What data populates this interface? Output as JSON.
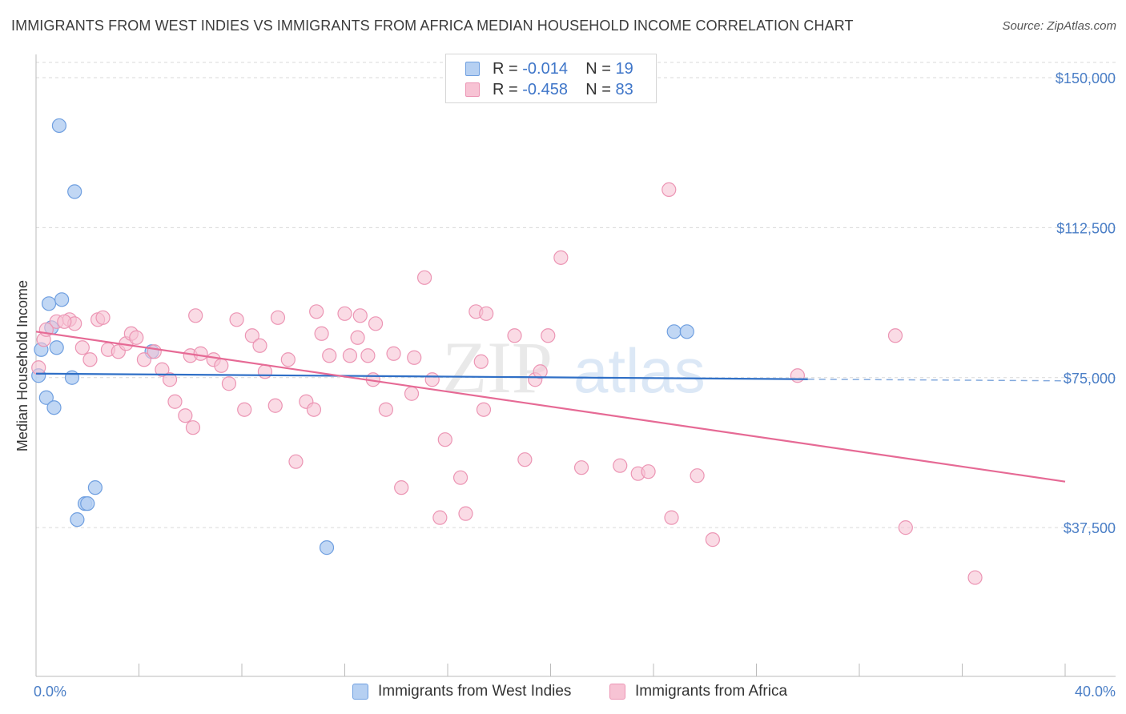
{
  "title": "IMMIGRANTS FROM WEST INDIES VS IMMIGRANTS FROM AFRICA MEDIAN HOUSEHOLD INCOME CORRELATION CHART",
  "source": "Source: ZipAtlas.com",
  "watermark": {
    "zip": "ZIP",
    "atlas": "atlas"
  },
  "legend_top": {
    "rows": [
      {
        "r_label": "R =",
        "r_value": "-0.014",
        "n_label": "N =",
        "n_value": "19"
      },
      {
        "r_label": "R =",
        "r_value": "-0.458",
        "n_label": "N =",
        "n_value": "83"
      }
    ]
  },
  "colors": {
    "west_indies_fill": "#b6d0f2",
    "west_indies_stroke": "#6f9fe0",
    "west_indies_line": "#2f6fc6",
    "africa_fill": "#f7c3d4",
    "africa_stroke": "#ec95b4",
    "africa_line": "#e66a95",
    "axis_text": "#4a7ec6",
    "grid": "#d9d9d9"
  },
  "chart_data": {
    "type": "scatter",
    "title": "IMMIGRANTS FROM WEST INDIES VS IMMIGRANTS FROM AFRICA MEDIAN HOUSEHOLD INCOME CORRELATION CHART",
    "xlabel": "",
    "ylabel": "Median Household Income",
    "xlim": [
      0,
      40
    ],
    "ylim": [
      0,
      153000
    ],
    "x_tick_labels": [
      "0.0%",
      "40.0%"
    ],
    "y_ticks": [
      37500,
      75000,
      112500,
      150000
    ],
    "y_tick_labels": [
      "$37,500",
      "$75,000",
      "$112,500",
      "$150,000"
    ],
    "grid": "horizontal dashed",
    "legend_placement": "bottom-center",
    "series": [
      {
        "name": "Immigrants from West Indies",
        "R": -0.014,
        "N": 19,
        "trend": {
          "x0": 0,
          "y0": 76000,
          "x1": 30,
          "y1": 74600,
          "dashed_to_x": 40,
          "dashed_y1": 74200
        },
        "points": [
          [
            0.1,
            75500
          ],
          [
            0.2,
            82000
          ],
          [
            0.4,
            70000
          ],
          [
            0.5,
            93500
          ],
          [
            0.6,
            87500
          ],
          [
            0.7,
            67500
          ],
          [
            0.8,
            82500
          ],
          [
            0.9,
            138000
          ],
          [
            1.0,
            94500
          ],
          [
            1.4,
            75000
          ],
          [
            1.5,
            121500
          ],
          [
            1.6,
            39500
          ],
          [
            1.9,
            43500
          ],
          [
            2.0,
            43500
          ],
          [
            2.3,
            47500
          ],
          [
            4.5,
            81500
          ],
          [
            11.3,
            32500
          ],
          [
            24.8,
            86500
          ],
          [
            25.3,
            86500
          ]
        ]
      },
      {
        "name": "Immigrants from Africa",
        "R": -0.458,
        "N": 83,
        "trend": {
          "x0": 0,
          "y0": 86500,
          "x1": 40,
          "y1": 49000
        },
        "points": [
          [
            0.1,
            77500
          ],
          [
            0.3,
            84500
          ],
          [
            0.8,
            89000
          ],
          [
            1.3,
            89500
          ],
          [
            1.5,
            88500
          ],
          [
            1.8,
            82500
          ],
          [
            2.1,
            79500
          ],
          [
            2.4,
            89500
          ],
          [
            2.6,
            90000
          ],
          [
            2.8,
            82000
          ],
          [
            3.2,
            81500
          ],
          [
            3.5,
            83500
          ],
          [
            3.7,
            86000
          ],
          [
            3.9,
            85000
          ],
          [
            4.2,
            79500
          ],
          [
            4.6,
            81500
          ],
          [
            4.9,
            77000
          ],
          [
            5.2,
            74500
          ],
          [
            5.4,
            69000
          ],
          [
            5.8,
            65500
          ],
          [
            6.0,
            80500
          ],
          [
            6.1,
            62500
          ],
          [
            6.2,
            90500
          ],
          [
            6.4,
            81000
          ],
          [
            6.9,
            79500
          ],
          [
            7.2,
            78000
          ],
          [
            7.5,
            73500
          ],
          [
            7.8,
            89500
          ],
          [
            8.1,
            67000
          ],
          [
            8.4,
            85500
          ],
          [
            8.7,
            83000
          ],
          [
            8.9,
            76500
          ],
          [
            9.3,
            68000
          ],
          [
            9.4,
            90000
          ],
          [
            9.8,
            79500
          ],
          [
            10.1,
            54000
          ],
          [
            10.5,
            69000
          ],
          [
            10.8,
            67000
          ],
          [
            10.9,
            91500
          ],
          [
            11.1,
            86000
          ],
          [
            11.4,
            80500
          ],
          [
            12.0,
            91000
          ],
          [
            12.2,
            80500
          ],
          [
            12.5,
            85000
          ],
          [
            12.6,
            90500
          ],
          [
            12.9,
            80500
          ],
          [
            13.1,
            74500
          ],
          [
            13.2,
            88500
          ],
          [
            13.6,
            67000
          ],
          [
            13.9,
            81000
          ],
          [
            14.2,
            47500
          ],
          [
            14.6,
            71000
          ],
          [
            14.7,
            80000
          ],
          [
            15.1,
            100000
          ],
          [
            15.4,
            74500
          ],
          [
            15.7,
            40000
          ],
          [
            15.9,
            59500
          ],
          [
            16.5,
            50000
          ],
          [
            16.7,
            41000
          ],
          [
            17.1,
            91500
          ],
          [
            17.3,
            79000
          ],
          [
            17.4,
            67000
          ],
          [
            17.5,
            91000
          ],
          [
            18.6,
            85500
          ],
          [
            19.0,
            54500
          ],
          [
            19.4,
            74500
          ],
          [
            19.6,
            76500
          ],
          [
            19.9,
            85500
          ],
          [
            20.4,
            105000
          ],
          [
            21.2,
            52500
          ],
          [
            22.7,
            53000
          ],
          [
            23.4,
            51000
          ],
          [
            23.8,
            51500
          ],
          [
            24.6,
            122000
          ],
          [
            24.7,
            40000
          ],
          [
            25.7,
            50500
          ],
          [
            26.3,
            34500
          ],
          [
            29.6,
            75500
          ],
          [
            33.4,
            85500
          ],
          [
            33.8,
            37500
          ],
          [
            36.5,
            25000
          ],
          [
            0.4,
            87000
          ],
          [
            1.1,
            89000
          ]
        ]
      }
    ]
  }
}
